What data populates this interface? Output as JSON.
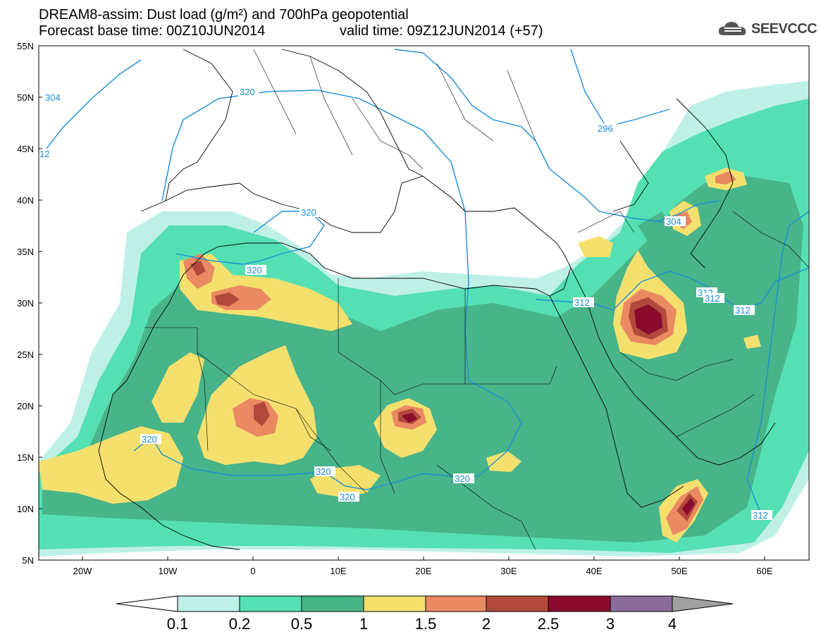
{
  "title": {
    "line1": "DREAM8-assim: Dust load (g/m²) and 700hPa geopotential",
    "line2": "Forecast base time: 00Z10JUN2014",
    "line2b": "valid time: 09Z12JUN2014 (+57)"
  },
  "logo": {
    "text": "SEEVCCC",
    "icon": "cloud-logo-icon"
  },
  "map": {
    "lon_ticks": [
      "20W",
      "10W",
      "0",
      "10E",
      "20E",
      "30E",
      "40E",
      "50E",
      "60E"
    ],
    "lat_ticks": [
      "55N",
      "50N",
      "45N",
      "40N",
      "35N",
      "30N",
      "25N",
      "20N",
      "15N",
      "10N",
      "5N"
    ],
    "contour_labels": [
      "304",
      "12",
      "320",
      "296",
      "320",
      "320",
      "304",
      "312",
      "312",
      "312",
      "312",
      "320",
      "320",
      "320",
      "320",
      "312"
    ]
  },
  "colorbar": {
    "ticks": [
      "0.1",
      "0.2",
      "0.5",
      "1",
      "1.5",
      "2",
      "2.5",
      "3",
      "4"
    ],
    "colors": [
      "#bff0e6",
      "#55e0b3",
      "#48b48a",
      "#f5e06e",
      "#e98a62",
      "#b14a3c",
      "#8a0b2e",
      "#8a6b9a",
      "#a0a0a0"
    ]
  },
  "palette": {
    "c1": "#bff0e6",
    "c2": "#55e0b3",
    "c3": "#48b48a",
    "c4": "#f5e06e",
    "c5": "#e98a62",
    "c6": "#b14a3c",
    "c7": "#8a0b2e",
    "contour": "#1a8fd6"
  }
}
